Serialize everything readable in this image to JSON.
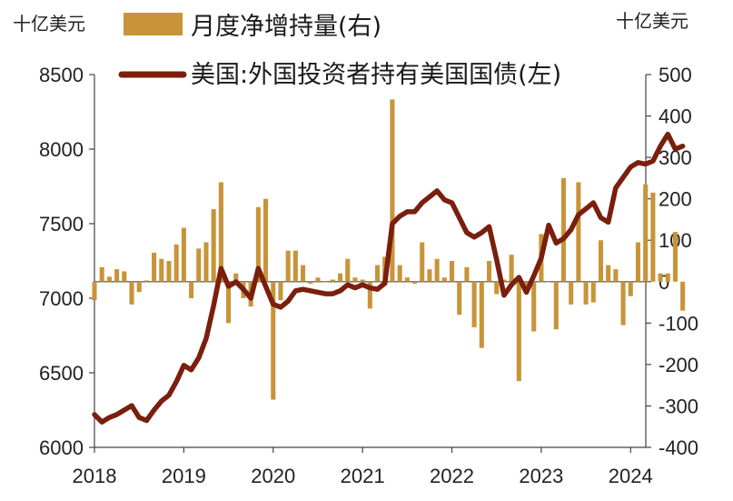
{
  "chart_data": {
    "type": "bar+line",
    "left_unit": "十亿美元",
    "right_unit": "十亿美元",
    "x_ticks": [
      "2018",
      "2019",
      "2020",
      "2021",
      "2022",
      "2023",
      "2024"
    ],
    "x_range": [
      2018.0,
      2024.17
    ],
    "left_axis": {
      "ylim": [
        6000,
        8500
      ],
      "ticks": [
        6000,
        6500,
        7000,
        7500,
        8000,
        8500
      ]
    },
    "right_axis": {
      "ylim": [
        -400,
        500
      ],
      "ticks": [
        -400,
        -300,
        -200,
        -100,
        0,
        100,
        200,
        300,
        400,
        500
      ]
    },
    "colors": {
      "bar": "#C8943A",
      "line": "#7A1E0E"
    },
    "series": [
      {
        "name": "月度净增持量(右)",
        "kind": "bar",
        "axis": "right",
        "start": "2018-01",
        "values": [
          -45,
          35,
          12,
          30,
          25,
          -55,
          -25,
          3,
          70,
          55,
          50,
          90,
          130,
          -40,
          80,
          95,
          175,
          240,
          -100,
          20,
          -40,
          -60,
          180,
          200,
          -285,
          -45,
          75,
          75,
          40,
          -5,
          10,
          0,
          5,
          20,
          55,
          10,
          5,
          -65,
          40,
          60,
          440,
          40,
          10,
          -5,
          95,
          30,
          55,
          10,
          50,
          -80,
          35,
          -110,
          -160,
          50,
          -30,
          5,
          65,
          -240,
          -10,
          -120,
          115,
          0,
          -115,
          250,
          -55,
          240,
          -55,
          -50,
          100,
          40,
          30,
          -105,
          -35,
          95,
          235,
          215,
          20,
          20,
          120,
          -70
        ]
      },
      {
        "name": "美国:外国投资者持有美国国债(左)",
        "kind": "line",
        "axis": "left",
        "start": "2018-01",
        "values": [
          6220,
          6170,
          6200,
          6220,
          6250,
          6280,
          6200,
          6180,
          6250,
          6310,
          6350,
          6440,
          6550,
          6520,
          6600,
          6730,
          6950,
          7200,
          7080,
          7110,
          7060,
          7000,
          7200,
          7080,
          6960,
          6940,
          6980,
          7050,
          7060,
          7050,
          7040,
          7030,
          7030,
          7050,
          7090,
          7070,
          7090,
          7070,
          7060,
          7100,
          7500,
          7550,
          7580,
          7580,
          7640,
          7680,
          7720,
          7660,
          7640,
          7540,
          7440,
          7410,
          7440,
          7480,
          7260,
          7020,
          7090,
          7140,
          7040,
          7150,
          7270,
          7490,
          7370,
          7400,
          7460,
          7560,
          7600,
          7640,
          7540,
          7510,
          7740,
          7810,
          7880,
          7910,
          7900,
          7920,
          8020,
          8100,
          8000,
          8020
        ]
      }
    ]
  }
}
